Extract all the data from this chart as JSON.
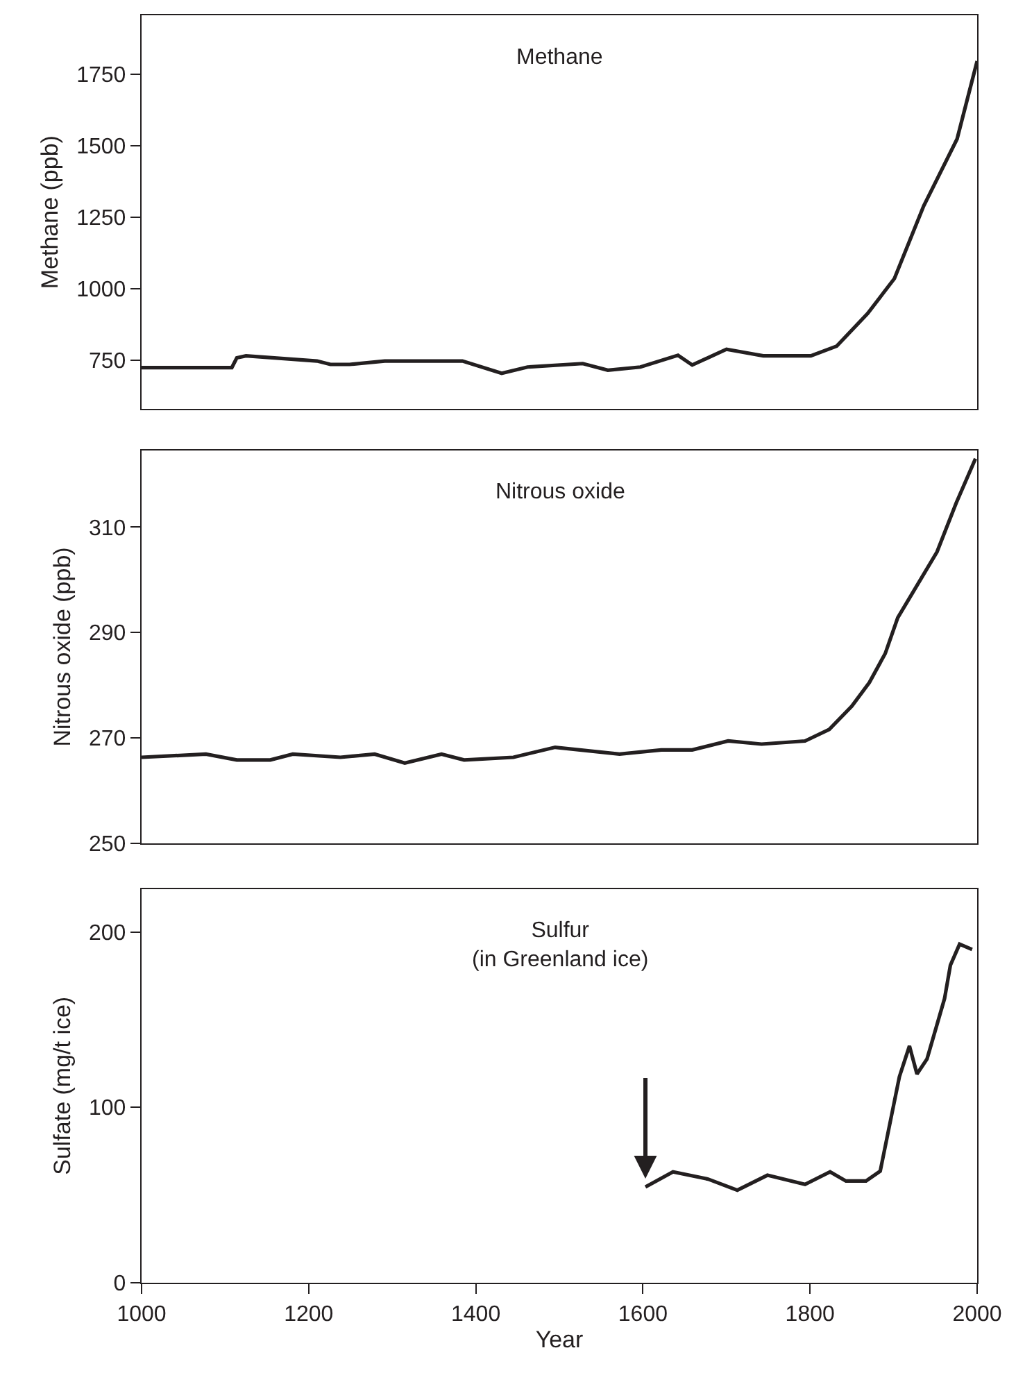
{
  "chart_data": [
    {
      "type": "line",
      "title": "Methane",
      "ylabel": "Methane (ppb)",
      "xlim": [
        1000,
        2000
      ],
      "ylim": [
        580,
        1955
      ],
      "yticks": [
        750,
        1000,
        1250,
        1500,
        1750
      ],
      "tick_labels": "y",
      "marker": "none",
      "line_style": "solid",
      "series": [
        {
          "color": "#231f20",
          "x": [
            1000,
            1108,
            1114,
            1125,
            1210,
            1226,
            1249,
            1291,
            1384,
            1431,
            1462,
            1528,
            1558,
            1597,
            1642,
            1659,
            1700,
            1744,
            1801,
            1832,
            1869,
            1901,
            1936,
            1976,
            2000
          ],
          "values": [
            725,
            725,
            759,
            766,
            748,
            736,
            736,
            748,
            748,
            705,
            727,
            739,
            716,
            727,
            768,
            734,
            789,
            766,
            766,
            800,
            914,
            1036,
            1289,
            1523,
            1795
          ]
        }
      ]
    },
    {
      "type": "line",
      "title": "Nitrous oxide",
      "ylabel": "Nitrous oxide (ppb)",
      "xlim": [
        1000,
        2000
      ],
      "ylim": [
        250,
        324.5
      ],
      "yticks": [
        250,
        270,
        290,
        310
      ],
      "tick_labels": "y",
      "marker": "none",
      "line_style": "solid",
      "series": [
        {
          "color": "#231f20",
          "x": [
            1000,
            1077,
            1114,
            1154,
            1181,
            1238,
            1279,
            1315,
            1359,
            1386,
            1445,
            1495,
            1572,
            1622,
            1659,
            1702,
            1742,
            1794,
            1823,
            1850,
            1871,
            1890,
            1905,
            1952,
            1975,
            1998
          ],
          "values": [
            266.3,
            266.9,
            265.8,
            265.8,
            266.9,
            266.3,
            266.9,
            265.2,
            266.9,
            265.8,
            266.3,
            268.2,
            266.9,
            267.7,
            267.7,
            269.4,
            268.8,
            269.4,
            271.6,
            276.0,
            280.5,
            286.0,
            292.8,
            305.3,
            314.6,
            323.0
          ]
        }
      ]
    },
    {
      "type": "line",
      "title": "Sulfur\n(in Greenland ice)",
      "xlabel": "Year",
      "ylabel": "Sulfate (mg/t ice)",
      "xlim": [
        1000,
        2000
      ],
      "xticks": [
        1000,
        1200,
        1400,
        1600,
        1800,
        2000
      ],
      "ylim": [
        0,
        224.5
      ],
      "yticks": [
        0,
        100,
        200
      ],
      "marker": "none",
      "line_style": "solid",
      "series": [
        {
          "color": "#231f20",
          "x": [
            1603,
            1636,
            1678,
            1713,
            1749,
            1794,
            1824,
            1843,
            1867,
            1884,
            1907,
            1919,
            1928,
            1940,
            1961,
            1968,
            1979,
            1994
          ],
          "values": [
            54.6,
            63.2,
            59.1,
            52.8,
            61.3,
            56.1,
            63.2,
            58.0,
            58.0,
            63.6,
            117.5,
            135,
            119,
            127.5,
            162,
            181,
            193,
            190
          ]
        }
      ]
    }
  ]
}
